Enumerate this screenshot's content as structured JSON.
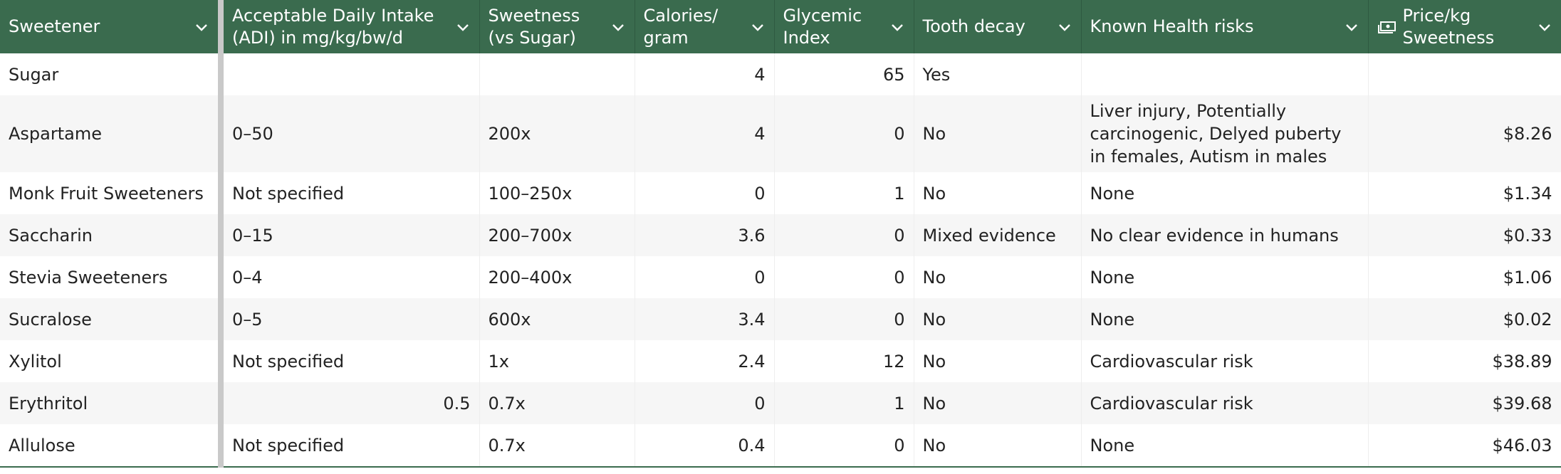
{
  "table": {
    "columns": [
      "Sweetener",
      "Acceptable Daily Intake (ADI) in mg/kg/bw/d",
      "Sweetness (vs Sugar)",
      "Calories/ gram",
      "Glycemic Index",
      "Tooth decay",
      "Known Health risks",
      "Price/kg Sweetness"
    ],
    "rows": [
      [
        "Sugar",
        null,
        null,
        4,
        65,
        "Yes",
        null,
        null
      ],
      [
        "Aspartame",
        "0–50",
        "200x",
        4,
        0,
        "No",
        "Liver injury, Potentially carcinogenic, Delyed puberty in females, Autism in males",
        "$8.26"
      ],
      [
        "Monk Fruit Sweeteners",
        "Not specified",
        "100–250x",
        0,
        1,
        "No",
        "None",
        "$1.34"
      ],
      [
        "Saccharin",
        "0–15",
        "200–700x",
        3.6,
        0,
        "Mixed evidence",
        "No clear evidence in humans",
        "$0.33"
      ],
      [
        "Stevia Sweeteners",
        "0–4",
        "200–400x",
        0,
        0,
        "No",
        "None",
        "$1.06"
      ],
      [
        "Sucralose",
        "0–5",
        "600x",
        3.4,
        0,
        "No",
        "None",
        "$0.02"
      ],
      [
        "Xylitol",
        "Not specified",
        "1x",
        2.4,
        12,
        "No",
        "Cardiovascular risk",
        "$38.89"
      ],
      [
        "Erythritol",
        0.5,
        "0.7x",
        0,
        1,
        "No",
        "Cardiovascular risk",
        "$39.68"
      ],
      [
        "Allulose",
        "Not specified",
        "0.7x",
        0.4,
        0,
        "No",
        "None",
        "$46.03"
      ]
    ]
  }
}
